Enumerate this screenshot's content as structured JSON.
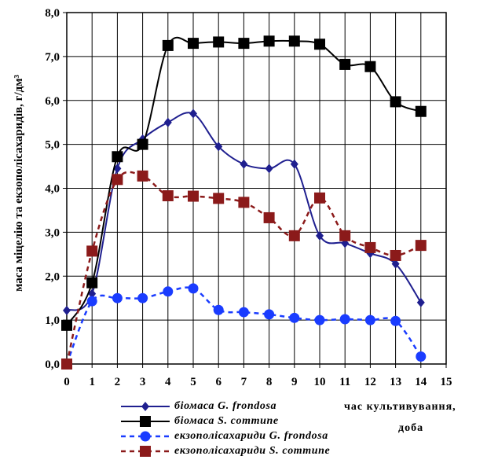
{
  "chart_data": {
    "type": "line",
    "xlabel_line1": "час культивування,",
    "xlabel_line2": "доба",
    "ylabel": "маса міцелію та екзополісахаридів, г/дм³",
    "xlim": [
      0,
      15
    ],
    "ylim": [
      0,
      8
    ],
    "x_ticks": [
      "0",
      "1",
      "2",
      "3",
      "4",
      "5",
      "6",
      "7",
      "8",
      "9",
      "10",
      "11",
      "12",
      "13",
      "14",
      "15"
    ],
    "y_ticks": [
      "0,0",
      "1,0",
      "2,0",
      "3,0",
      "4,0",
      "5,0",
      "6,0",
      "7,0",
      "8,0"
    ],
    "grid": true,
    "legend_position": "bottom-left",
    "series": [
      {
        "name": "біомаса G. frondosa",
        "color": "#1f1f8f",
        "line": "solid",
        "marker": "diamond",
        "x": [
          0,
          1,
          2,
          3,
          4,
          5,
          6,
          7,
          8,
          9,
          10,
          11,
          12,
          13,
          14
        ],
        "y": [
          1.22,
          1.6,
          4.45,
          5.12,
          5.5,
          5.7,
          4.95,
          4.55,
          4.45,
          4.55,
          2.92,
          2.75,
          2.52,
          2.28,
          1.4
        ]
      },
      {
        "name": "біомаса S. commune",
        "color": "#000000",
        "line": "solid",
        "marker": "square",
        "x": [
          0,
          1,
          2,
          3,
          4,
          5,
          6,
          7,
          8,
          9,
          10,
          11,
          12,
          13,
          14
        ],
        "y": [
          0.88,
          1.85,
          4.72,
          5.0,
          7.25,
          7.3,
          7.33,
          7.3,
          7.35,
          7.35,
          7.28,
          6.82,
          6.77,
          5.97,
          5.75
        ]
      },
      {
        "name": "екзополісахариди G. frondosa",
        "color": "#1a3cff",
        "line": "dashed",
        "marker": "circle",
        "x": [
          0,
          1,
          2,
          3,
          4,
          5,
          6,
          7,
          8,
          9,
          10,
          11,
          12,
          13,
          14
        ],
        "y": [
          0.0,
          1.43,
          1.5,
          1.5,
          1.65,
          1.72,
          1.23,
          1.18,
          1.13,
          1.05,
          1.0,
          1.02,
          1.0,
          0.98,
          0.17
        ]
      },
      {
        "name": "екзополісахариди S. commune",
        "color": "#8b1a1a",
        "line": "dashed",
        "marker": "square",
        "x": [
          0,
          1,
          2,
          3,
          4,
          5,
          6,
          7,
          8,
          9,
          10,
          11,
          12,
          13,
          14
        ],
        "y": [
          0.0,
          2.57,
          4.2,
          4.28,
          3.83,
          3.82,
          3.77,
          3.68,
          3.33,
          2.92,
          3.78,
          2.92,
          2.65,
          2.47,
          2.7
        ]
      }
    ]
  }
}
